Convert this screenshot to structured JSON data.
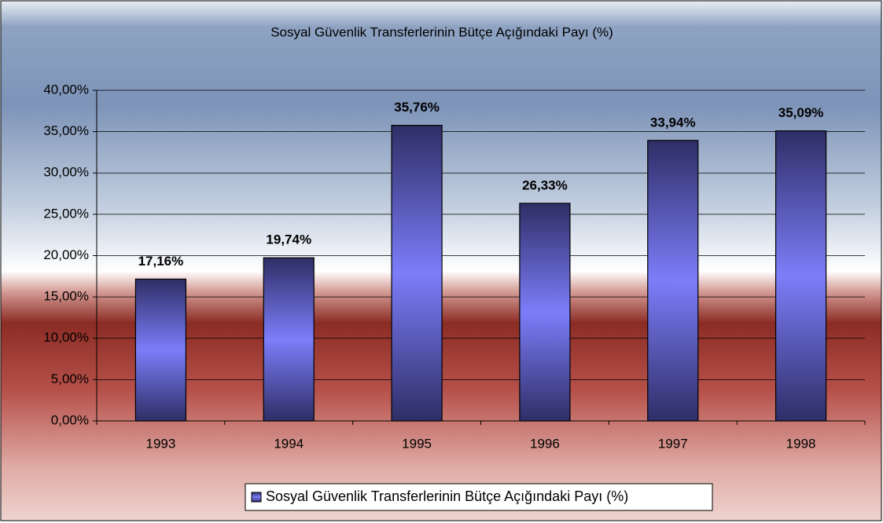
{
  "chart_data": {
    "type": "bar",
    "title": "Sosyal Güvenlik Transferlerinin Bütçe Açığındaki Payı (%)",
    "categories": [
      "1993",
      "1994",
      "1995",
      "1996",
      "1997",
      "1998"
    ],
    "series": [
      {
        "name": "Sosyal Güvenlik Transferlerinin Bütçe Açığındaki Payı (%)",
        "color": "#7b7bf0",
        "values": [
          17.16,
          19.74,
          35.76,
          26.33,
          33.94,
          35.09
        ],
        "value_labels": [
          "17,16%",
          "19,74%",
          "35,76%",
          "26,33%",
          "33,94%",
          "35,09%"
        ]
      }
    ],
    "ylim": [
      0,
      40
    ],
    "yticks": [
      {
        "value": 0,
        "label": "0,00%"
      },
      {
        "value": 5,
        "label": "5,00%"
      },
      {
        "value": 10,
        "label": "10,00%"
      },
      {
        "value": 15,
        "label": "15,00%"
      },
      {
        "value": 20,
        "label": "20,00%"
      },
      {
        "value": 25,
        "label": "25,00%"
      },
      {
        "value": 30,
        "label": "30,00%"
      },
      {
        "value": 35,
        "label": "35,00%"
      },
      {
        "value": 40,
        "label": "40,00%"
      }
    ],
    "grid": true,
    "legend": "bottom"
  }
}
